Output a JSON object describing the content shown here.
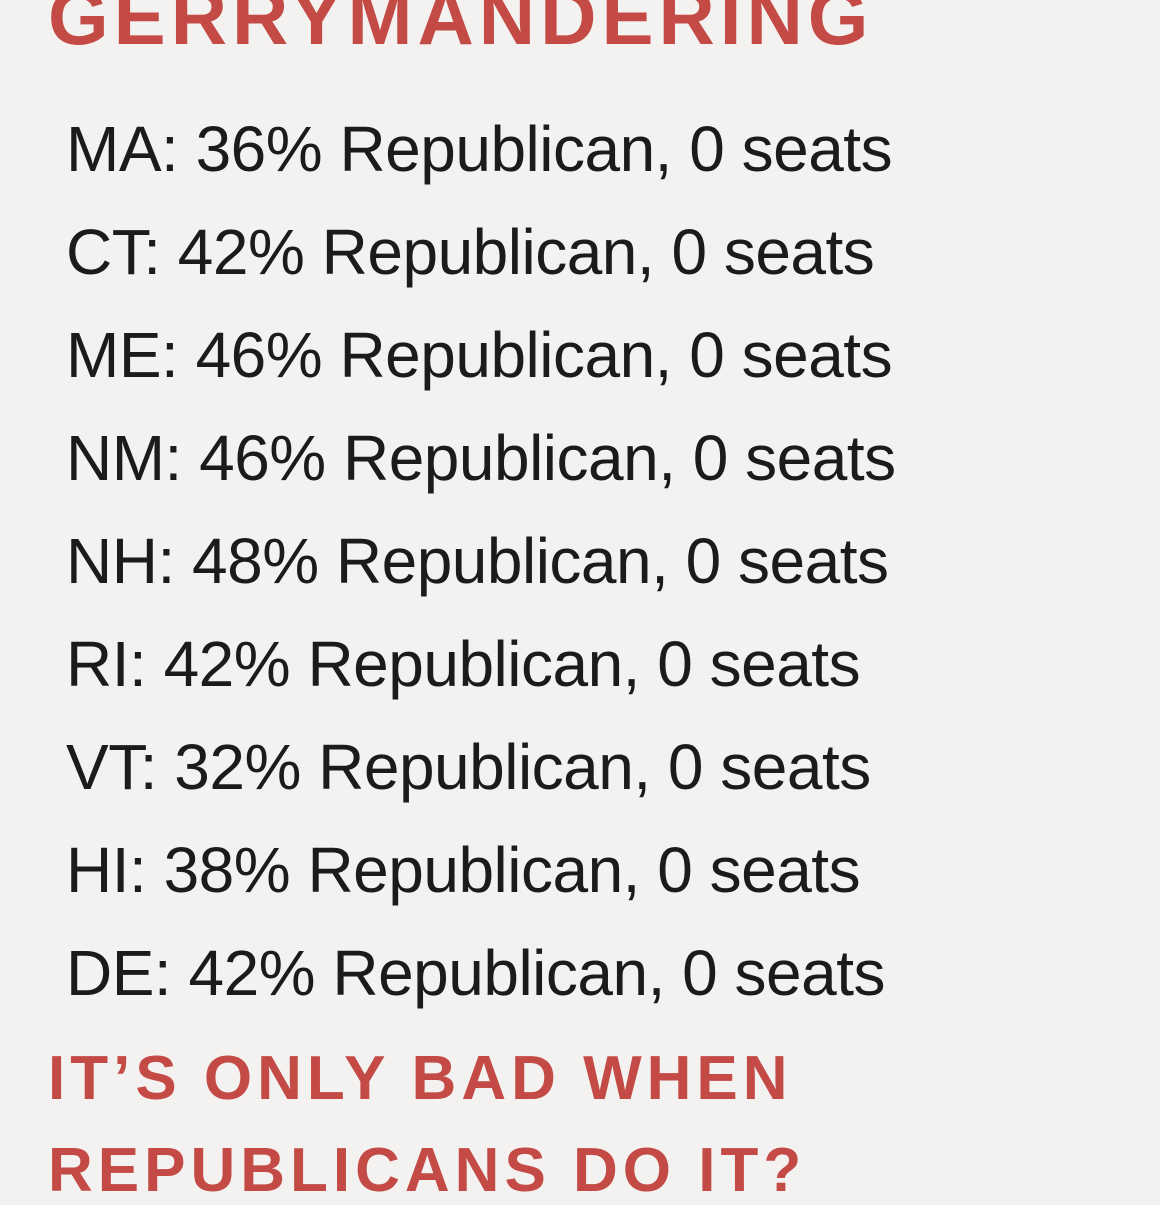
{
  "header": {
    "title": "GERRYMANDERING"
  },
  "lines": [
    "MA: 36% Republican, 0 seats",
    "CT: 42% Republican, 0 seats",
    "ME: 46% Republican, 0 seats",
    "NM: 46% Republican, 0 seats",
    "NH: 48% Republican, 0 seats",
    "RI: 42% Republican, 0 seats",
    "VT: 32% Republican, 0 seats",
    "HI: 38% Republican, 0 seats",
    "DE: 42% Republican, 0 seats"
  ],
  "footer": [
    "IT’S ONLY BAD WHEN",
    "REPUBLICANS DO IT?"
  ]
}
